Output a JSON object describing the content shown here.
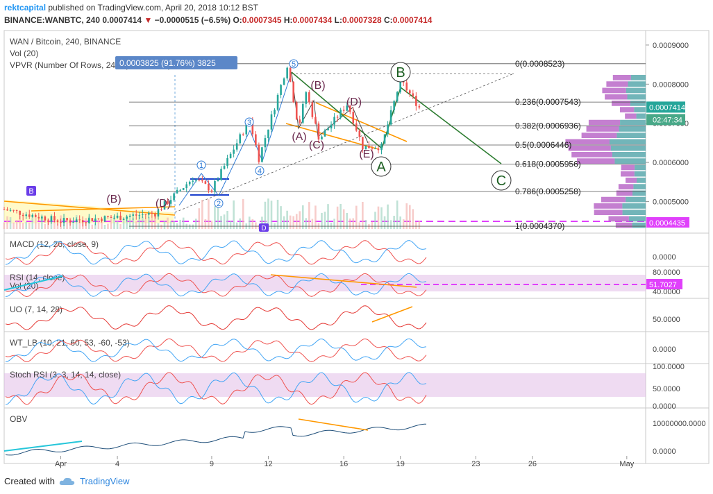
{
  "header": {
    "user": "rektcapital",
    "published": "published on TradingView.com, April 20, 2018 10:12 BST",
    "symbol": "BINANCE:WANBTC, 240",
    "price": "0.0007414",
    "change": "−0.0000515 (−6.5%)",
    "o_label": "O:",
    "o": "0.0007345",
    "h_label": "H:",
    "h": "0.0007434",
    "l_label": "L:",
    "l": "0.0007328",
    "c_label": "C:",
    "c": "0.0007414"
  },
  "legend": {
    "main": "WAN / Bitcoin, 240, BINANCE",
    "vol": "Vol (20)",
    "vpvr": "VPVR (Number Of Rows, 24, Up/Down, 70)",
    "measure": "0.0003825 (91.76%) 3825"
  },
  "price_axis": {
    "ticks": [
      "0.0009000",
      "0.0008000",
      "0.0007000",
      "0.0006000",
      "0.0005000"
    ],
    "current_price": "0.0007414",
    "countdown": "02:47:34",
    "pink_price": "0.0004435",
    "rsi_label": "51.7027"
  },
  "fib_levels": [
    {
      "ratio": "0",
      "price": "0.0008523",
      "label": "0(0.0008523)"
    },
    {
      "ratio": "0.236",
      "price": "0.0007543",
      "label": "0.236(0.0007543)"
    },
    {
      "ratio": "0.382",
      "price": "0.0006936",
      "label": "0.382(0.0006936)"
    },
    {
      "ratio": "0.5",
      "price": "0.0006446",
      "label": "0.5(0.0006446)"
    },
    {
      "ratio": "0.618",
      "price": "0.0005956",
      "label": "0.618(0.0005956)"
    },
    {
      "ratio": "0.786",
      "price": "0.0005258",
      "label": "0.786(0.0005258)"
    },
    {
      "ratio": "1",
      "price": "0.0004370",
      "label": "1(0.0004370)"
    }
  ],
  "wave_labels": {
    "impulse": [
      "1",
      "2",
      "3",
      "4",
      "5"
    ],
    "correction": [
      "(A)",
      "(B)",
      "(C)",
      "(D)",
      "(E)"
    ],
    "big": [
      "A",
      "B",
      "C"
    ],
    "left": [
      "(B)",
      "(D)",
      "(C)",
      "(E)",
      "B",
      "D"
    ]
  },
  "panes": [
    {
      "name": "macd",
      "label": "MACD (12, 26, close, 9)",
      "ticks": [
        "0.0000"
      ]
    },
    {
      "name": "rsi",
      "label": "RSI (14, close)",
      "sublabel": "Vol (20)",
      "ticks": [
        "80.0000",
        "40.0000"
      ]
    },
    {
      "name": "uo",
      "label": "UO (7, 14, 28)",
      "ticks": [
        "50.0000"
      ]
    },
    {
      "name": "wt",
      "label": "WT_LB (10, 21, 60, 53, -60, -53)",
      "ticks": [
        "0.0000"
      ]
    },
    {
      "name": "stoch",
      "label": "Stoch RSI (3, 3, 14, 14, close)",
      "ticks": [
        "100.0000",
        "50.0000",
        "0.0000"
      ]
    },
    {
      "name": "obv",
      "label": "OBV",
      "ticks": [
        "10000000.0000",
        "0.0000"
      ]
    }
  ],
  "time_axis": [
    "Apr",
    "4",
    "9",
    "12",
    "16",
    "19",
    "23",
    "26",
    "May"
  ],
  "footer": {
    "created": "Created with",
    "brand": "TradingView"
  },
  "colors": {
    "up": "#26a69a",
    "down": "#ef5350",
    "accent": "#2196f3",
    "orange": "#ff9800",
    "wave": "#4a9a3a",
    "fib": "#555555",
    "pink": "#e040fb"
  },
  "chart_data": {
    "type": "candlestick",
    "title": "WAN / Bitcoin, 240, BINANCE",
    "x_range": [
      "2018-03-29",
      "2018-05-02"
    ],
    "y_range": [
      0.00043,
      0.00093
    ],
    "price_path": [
      {
        "date": "2018-03-29",
        "price": 0.00048
      },
      {
        "date": "2018-04-01",
        "price": 0.00045
      },
      {
        "date": "2018-04-04",
        "price": 0.00046
      },
      {
        "date": "2018-04-06",
        "price": 0.00047
      },
      {
        "date": "2018-04-08",
        "price": 0.00056
      },
      {
        "date": "2018-04-09",
        "price": 0.00053
      },
      {
        "date": "2018-04-11",
        "price": 0.00071
      },
      {
        "date": "2018-04-11.5",
        "price": 0.00061
      },
      {
        "date": "2018-04-13",
        "price": 0.00085
      },
      {
        "date": "2018-04-13.6",
        "price": 0.00069
      },
      {
        "date": "2018-04-14",
        "price": 0.00078
      },
      {
        "date": "2018-04-14.7",
        "price": 0.00066
      },
      {
        "date": "2018-04-16.2",
        "price": 0.00075
      },
      {
        "date": "2018-04-17",
        "price": 0.00064
      },
      {
        "date": "2018-04-18",
        "price": 0.00064
      },
      {
        "date": "2018-04-19",
        "price": 0.00081
      },
      {
        "date": "2018-04-20",
        "price": 0.000741
      }
    ],
    "last_price": 0.0007414
  }
}
